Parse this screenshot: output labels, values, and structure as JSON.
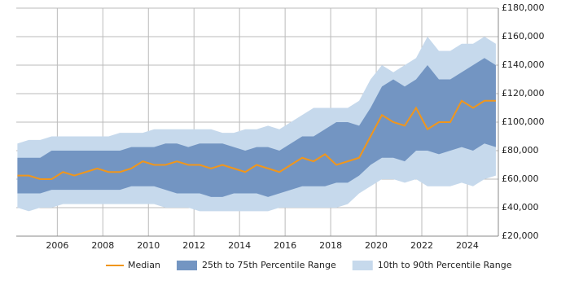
{
  "chart_data": {
    "type": "range",
    "x": [
      2004.25,
      2004.75,
      2005.25,
      2005.75,
      2006.25,
      2006.75,
      2007.25,
      2007.75,
      2008.25,
      2008.75,
      2009.25,
      2009.75,
      2010.25,
      2010.75,
      2011.25,
      2011.75,
      2012.25,
      2012.75,
      2013.25,
      2013.75,
      2014.25,
      2014.75,
      2015.25,
      2015.75,
      2016.25,
      2016.75,
      2017.25,
      2017.75,
      2018.25,
      2018.75,
      2019.25,
      2019.75,
      2020.25,
      2020.75,
      2021.25,
      2021.75,
      2022.25,
      2022.75,
      2023.25,
      2023.75,
      2024.25,
      2024.75,
      2025.25
    ],
    "bands": [
      {
        "name": "10th to 90th Percentile Range",
        "color": "#c6d9ec",
        "low": [
          40000,
          37500,
          40000,
          40000,
          42500,
          42500,
          42500,
          42500,
          42500,
          42500,
          42500,
          42500,
          42500,
          40000,
          40000,
          40000,
          37500,
          37500,
          37500,
          37500,
          37500,
          37500,
          37500,
          40000,
          40000,
          40000,
          40000,
          40000,
          40000,
          42500,
          50000,
          55000,
          60000,
          60000,
          57500,
          60000,
          55000,
          55000,
          55000,
          57500,
          55000,
          60000,
          62500
        ],
        "high": [
          85000,
          87500,
          87500,
          90000,
          90000,
          90000,
          90000,
          90000,
          90000,
          92500,
          92500,
          92500,
          95000,
          95000,
          95000,
          95000,
          95000,
          95000,
          92500,
          92500,
          95000,
          95000,
          97500,
          95000,
          100000,
          105000,
          110000,
          110000,
          110000,
          110000,
          115000,
          130000,
          140000,
          135000,
          140000,
          145000,
          160000,
          150000,
          150000,
          155000,
          155000,
          160000,
          155000
        ]
      },
      {
        "name": "25th to 75th Percentile Range",
        "color": "#7395c2",
        "low": [
          50000,
          50000,
          50000,
          52500,
          52500,
          52500,
          52500,
          52500,
          52500,
          52500,
          55000,
          55000,
          55000,
          52500,
          50000,
          50000,
          50000,
          47500,
          47500,
          50000,
          50000,
          50000,
          47500,
          50000,
          52500,
          55000,
          55000,
          55000,
          57500,
          57500,
          62500,
          70000,
          75000,
          75000,
          72500,
          80000,
          80000,
          77500,
          80000,
          82500,
          80000,
          85000,
          82500
        ],
        "high": [
          75000,
          75000,
          75000,
          80000,
          80000,
          80000,
          80000,
          80000,
          80000,
          80000,
          82500,
          82500,
          82500,
          85000,
          85000,
          82500,
          85000,
          85000,
          85000,
          82500,
          80000,
          82500,
          82500,
          80000,
          85000,
          90000,
          90000,
          95000,
          100000,
          100000,
          97500,
          110000,
          125000,
          130000,
          125000,
          130000,
          140000,
          130000,
          130000,
          135000,
          140000,
          145000,
          140000
        ]
      }
    ],
    "series": [
      {
        "name": "Median",
        "color": "#f0961c",
        "values": [
          62500,
          62500,
          60000,
          60000,
          65000,
          62500,
          65000,
          67500,
          65000,
          65000,
          67500,
          72500,
          70000,
          70000,
          72500,
          70000,
          70000,
          67500,
          70000,
          67500,
          65000,
          70000,
          67500,
          65000,
          70000,
          75000,
          72500,
          77500,
          70000,
          72500,
          75000,
          90000,
          105000,
          100000,
          97500,
          110000,
          95000,
          100000,
          100000,
          115000,
          110000,
          115000,
          115000
        ]
      }
    ],
    "xlim": [
      2004.2,
      2025.36
    ],
    "xticks": [
      2006,
      2008,
      2010,
      2012,
      2014,
      2016,
      2018,
      2020,
      2022,
      2024
    ],
    "ylim": [
      20000,
      180000
    ],
    "yticks": [
      {
        "value": 20000,
        "label": "£20,000"
      },
      {
        "value": 40000,
        "label": "£40,000"
      },
      {
        "value": 60000,
        "label": "£60,000"
      },
      {
        "value": 80000,
        "label": "£80,000"
      },
      {
        "value": 100000,
        "label": "£100,000"
      },
      {
        "value": 120000,
        "label": "£120,000"
      },
      {
        "value": 140000,
        "label": "£140,000"
      },
      {
        "value": 160000,
        "label": "£160,000"
      },
      {
        "value": 180000,
        "label": "£180,000"
      }
    ],
    "grid": true
  }
}
